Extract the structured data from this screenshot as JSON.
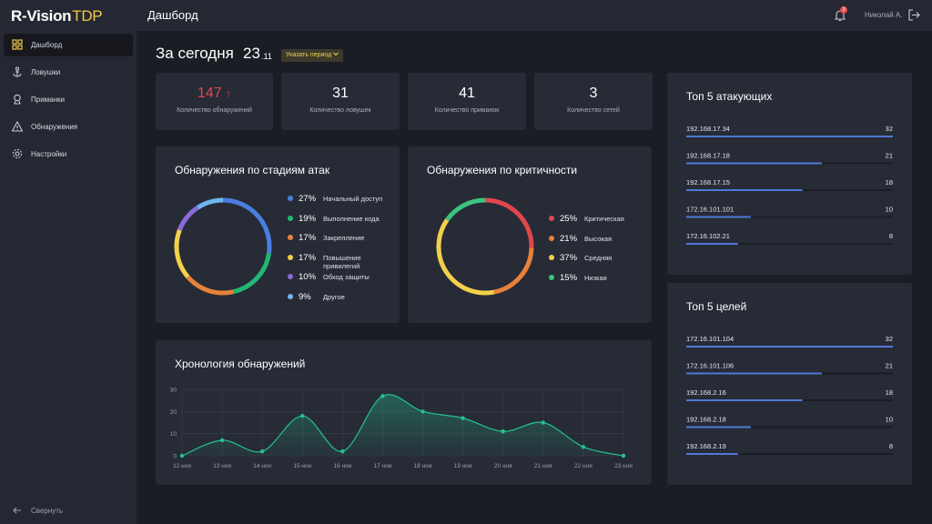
{
  "sidebar": {
    "logo": {
      "brand": "R-Vision",
      "product": "TDP"
    },
    "nav": [
      "Дашборд",
      "Ловушки",
      "Приманки",
      "Обнаружения",
      "Настройки"
    ],
    "collapse": "Свернуть"
  },
  "header": {
    "title": "Дашборд",
    "notifications": 3,
    "user": "Николай А."
  },
  "period": {
    "label": "За сегодня",
    "day": "23",
    "month": ".11",
    "button": "Указать период"
  },
  "stats": [
    {
      "value": 147,
      "trend": "↑",
      "label": "Количество обнаружений"
    },
    {
      "value": 31,
      "label": "Количество ловушек"
    },
    {
      "value": 41,
      "label": "Количество приманок"
    },
    {
      "value": 3,
      "label": "Количество сетей"
    }
  ],
  "chart_data": [
    {
      "type": "donut",
      "title": "Обнаружения по стадиям атак",
      "categories": [
        "Начальный доступ",
        "Выполнение кода",
        "Закрепление",
        "Повышение привилегий",
        "Обход защиты",
        "Другое"
      ],
      "values": [
        27,
        19,
        17,
        17,
        10,
        9
      ],
      "value_labels": [
        "27%",
        "19%",
        "17%",
        "17%",
        "10%",
        "9%"
      ],
      "colors": [
        "#4a7ee0",
        "#1fb873",
        "#e8823a",
        "#f2d04b",
        "#8b6bdb",
        "#6db6f2"
      ]
    },
    {
      "type": "donut",
      "title": "Обнаружения по критичности",
      "categories": [
        "Критическая",
        "Высокая",
        "Средняя",
        "Низкая"
      ],
      "values": [
        25,
        21,
        37,
        15
      ],
      "value_labels": [
        "25%",
        "21%",
        "37%",
        "15%"
      ],
      "colors": [
        "#e0474c",
        "#e8823a",
        "#f2d04b",
        "#3cc37f"
      ]
    },
    {
      "type": "line",
      "title": "Хронология обнаружений",
      "categories": [
        "12 ноя",
        "13 ноя",
        "14 ноя",
        "15 ноя",
        "16 ноя",
        "17 ноя",
        "18 ноя",
        "19 ноя",
        "20 ноя",
        "21 ноя",
        "22 ноя",
        "23 ноя"
      ],
      "values": [
        0,
        7,
        2,
        18,
        2,
        27,
        20,
        17,
        11,
        15,
        4,
        0
      ],
      "color": "#22c38e",
      "ylim": [
        0,
        30
      ],
      "yticks": [
        0,
        10,
        20,
        30
      ],
      "grid": true
    },
    {
      "type": "hbar",
      "title": "Топ 5 атакующих",
      "categories": [
        "192.168.17.34",
        "192.168.17.18",
        "192.168.17.15",
        "172.16.101.101",
        "172.16.102.21"
      ],
      "values": [
        32,
        21,
        18,
        10,
        8
      ],
      "color": "#4f78d6"
    },
    {
      "type": "hbar",
      "title": "Топ 5 целей",
      "categories": [
        "172.16.101.104",
        "172.16.101.106",
        "192.168.2.16",
        "192.168.2.18",
        "192.168.2.19"
      ],
      "values": [
        32,
        21,
        18,
        10,
        8
      ],
      "color": "#4f78d6"
    }
  ]
}
